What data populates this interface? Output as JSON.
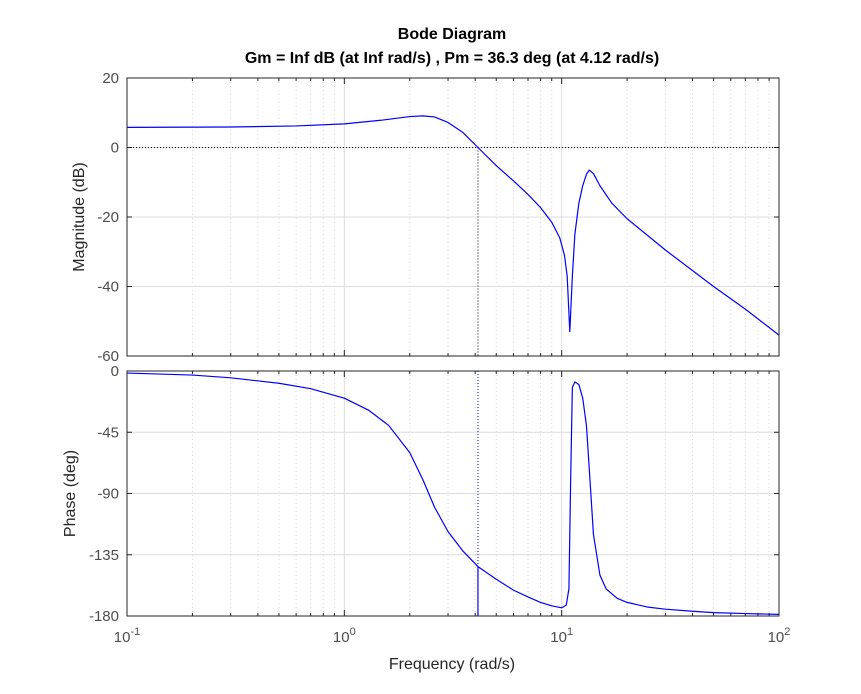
{
  "chart_data": {
    "type": "line",
    "title": "Bode Diagram",
    "subtitle": "Gm = Inf dB (at Inf rad/s) ,  Pm = 36.3 deg (at 4.12 rad/s)",
    "xlabel": "Frequency  (rad/s)",
    "x_scale": "log",
    "xlim": [
      0.1,
      100
    ],
    "x_tick_labels": [
      {
        "base": "10",
        "exp": "-1"
      },
      {
        "base": "10",
        "exp": "0"
      },
      {
        "base": "10",
        "exp": "1"
      },
      {
        "base": "10",
        "exp": "2"
      }
    ],
    "grid": true,
    "line_color": "#0000ff",
    "margin_marker_color": "#0000ff",
    "panels": [
      {
        "name": "magnitude",
        "ylabel": "Magnitude (dB)",
        "ylim": [
          -60,
          20
        ],
        "yticks": [
          20,
          0,
          -20,
          -40,
          -60
        ],
        "reference_line": 0,
        "crossover_marker": {
          "x": 4.12,
          "y_from": 0,
          "y_to": -60
        },
        "x": [
          0.1,
          0.3,
          0.6,
          1.0,
          1.5,
          2.0,
          2.3,
          2.6,
          3.0,
          3.5,
          4.12,
          5.0,
          6.0,
          7.0,
          8.0,
          9.0,
          9.8,
          10.3,
          10.6,
          10.9,
          11.2,
          11.5,
          12.0,
          12.5,
          13.0,
          13.4,
          14.0,
          15.0,
          17.0,
          20.0,
          30.0,
          50.0,
          70.0,
          100.0
        ],
        "y": [
          5.8,
          5.9,
          6.2,
          6.8,
          7.9,
          8.9,
          9.1,
          8.8,
          7.2,
          4.4,
          0.0,
          -5.2,
          -9.6,
          -13.5,
          -17.3,
          -21.5,
          -26.0,
          -31.0,
          -37.0,
          -53.0,
          -37.0,
          -25.0,
          -16.0,
          -11.0,
          -7.7,
          -6.5,
          -7.5,
          -11.0,
          -16.0,
          -20.5,
          -29.5,
          -40.0,
          -46.5,
          -54.0
        ]
      },
      {
        "name": "phase",
        "ylabel": "Phase (deg)",
        "ylim": [
          -180,
          0
        ],
        "yticks": [
          0,
          -45,
          -90,
          -135,
          -180
        ],
        "reference_line": -180,
        "crossover_marker": {
          "x": 4.12,
          "y_from": -143.7,
          "y_to": -180
        },
        "x": [
          0.1,
          0.2,
          0.3,
          0.5,
          0.7,
          1.0,
          1.3,
          1.6,
          2.0,
          2.3,
          2.6,
          3.0,
          3.5,
          4.12,
          5.0,
          6.0,
          7.0,
          8.0,
          9.0,
          10.0,
          10.5,
          10.8,
          11.0,
          11.2,
          11.5,
          12.0,
          12.5,
          13.0,
          13.5,
          14.0,
          15.0,
          16.0,
          18.0,
          20.0,
          25.0,
          30.0,
          40.0,
          50.0,
          70.0,
          100.0
        ],
        "y": [
          -1.5,
          -3.0,
          -5.0,
          -9.0,
          -13.0,
          -20.0,
          -29.0,
          -40.0,
          -60.0,
          -80.0,
          -100.0,
          -118.0,
          -132.0,
          -143.7,
          -153.0,
          -161.0,
          -166.0,
          -170.0,
          -172.5,
          -174.0,
          -172.0,
          -160.0,
          -80.0,
          -12.0,
          -8.0,
          -10.0,
          -20.0,
          -40.0,
          -80.0,
          -120.0,
          -150.0,
          -160.0,
          -167.0,
          -170.0,
          -173.5,
          -175.0,
          -176.5,
          -177.5,
          -178.2,
          -178.8
        ]
      }
    ]
  }
}
